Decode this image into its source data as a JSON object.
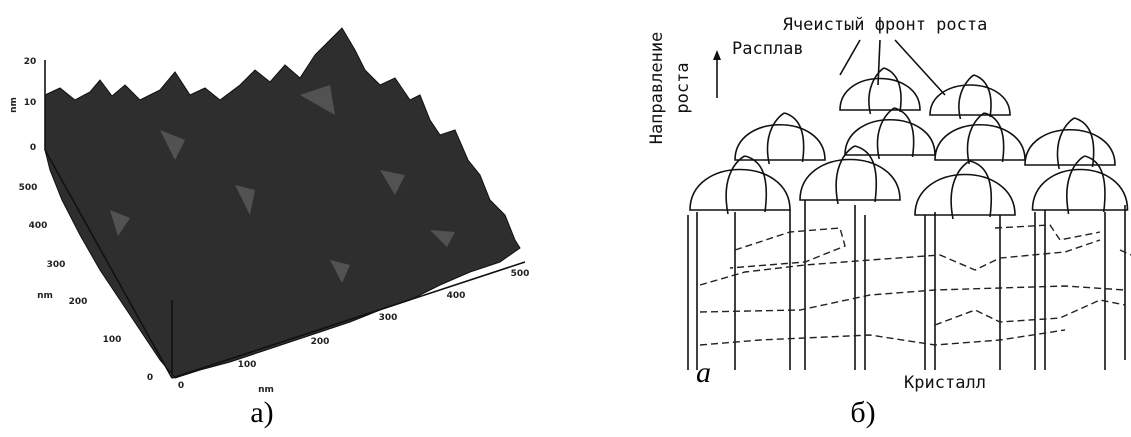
{
  "panel_a": {
    "z_axis": {
      "label": "nm",
      "ticks": [
        "20",
        "10",
        "0"
      ]
    },
    "y_axis": {
      "label": "nm",
      "ticks": [
        "500",
        "400",
        "300",
        "200",
        "100",
        "0"
      ]
    },
    "x_axis": {
      "label": "nm",
      "ticks": [
        "0",
        "100",
        "200",
        "300",
        "400",
        "500"
      ]
    },
    "caption": "а)"
  },
  "panel_b": {
    "annotation": "Ячеистый фронт роста",
    "direction_label": [
      "Направление",
      "роста"
    ],
    "melt_label": "Расплав",
    "corner_label": "a",
    "crystal_label": "Кристалл",
    "caption": "б)"
  }
}
